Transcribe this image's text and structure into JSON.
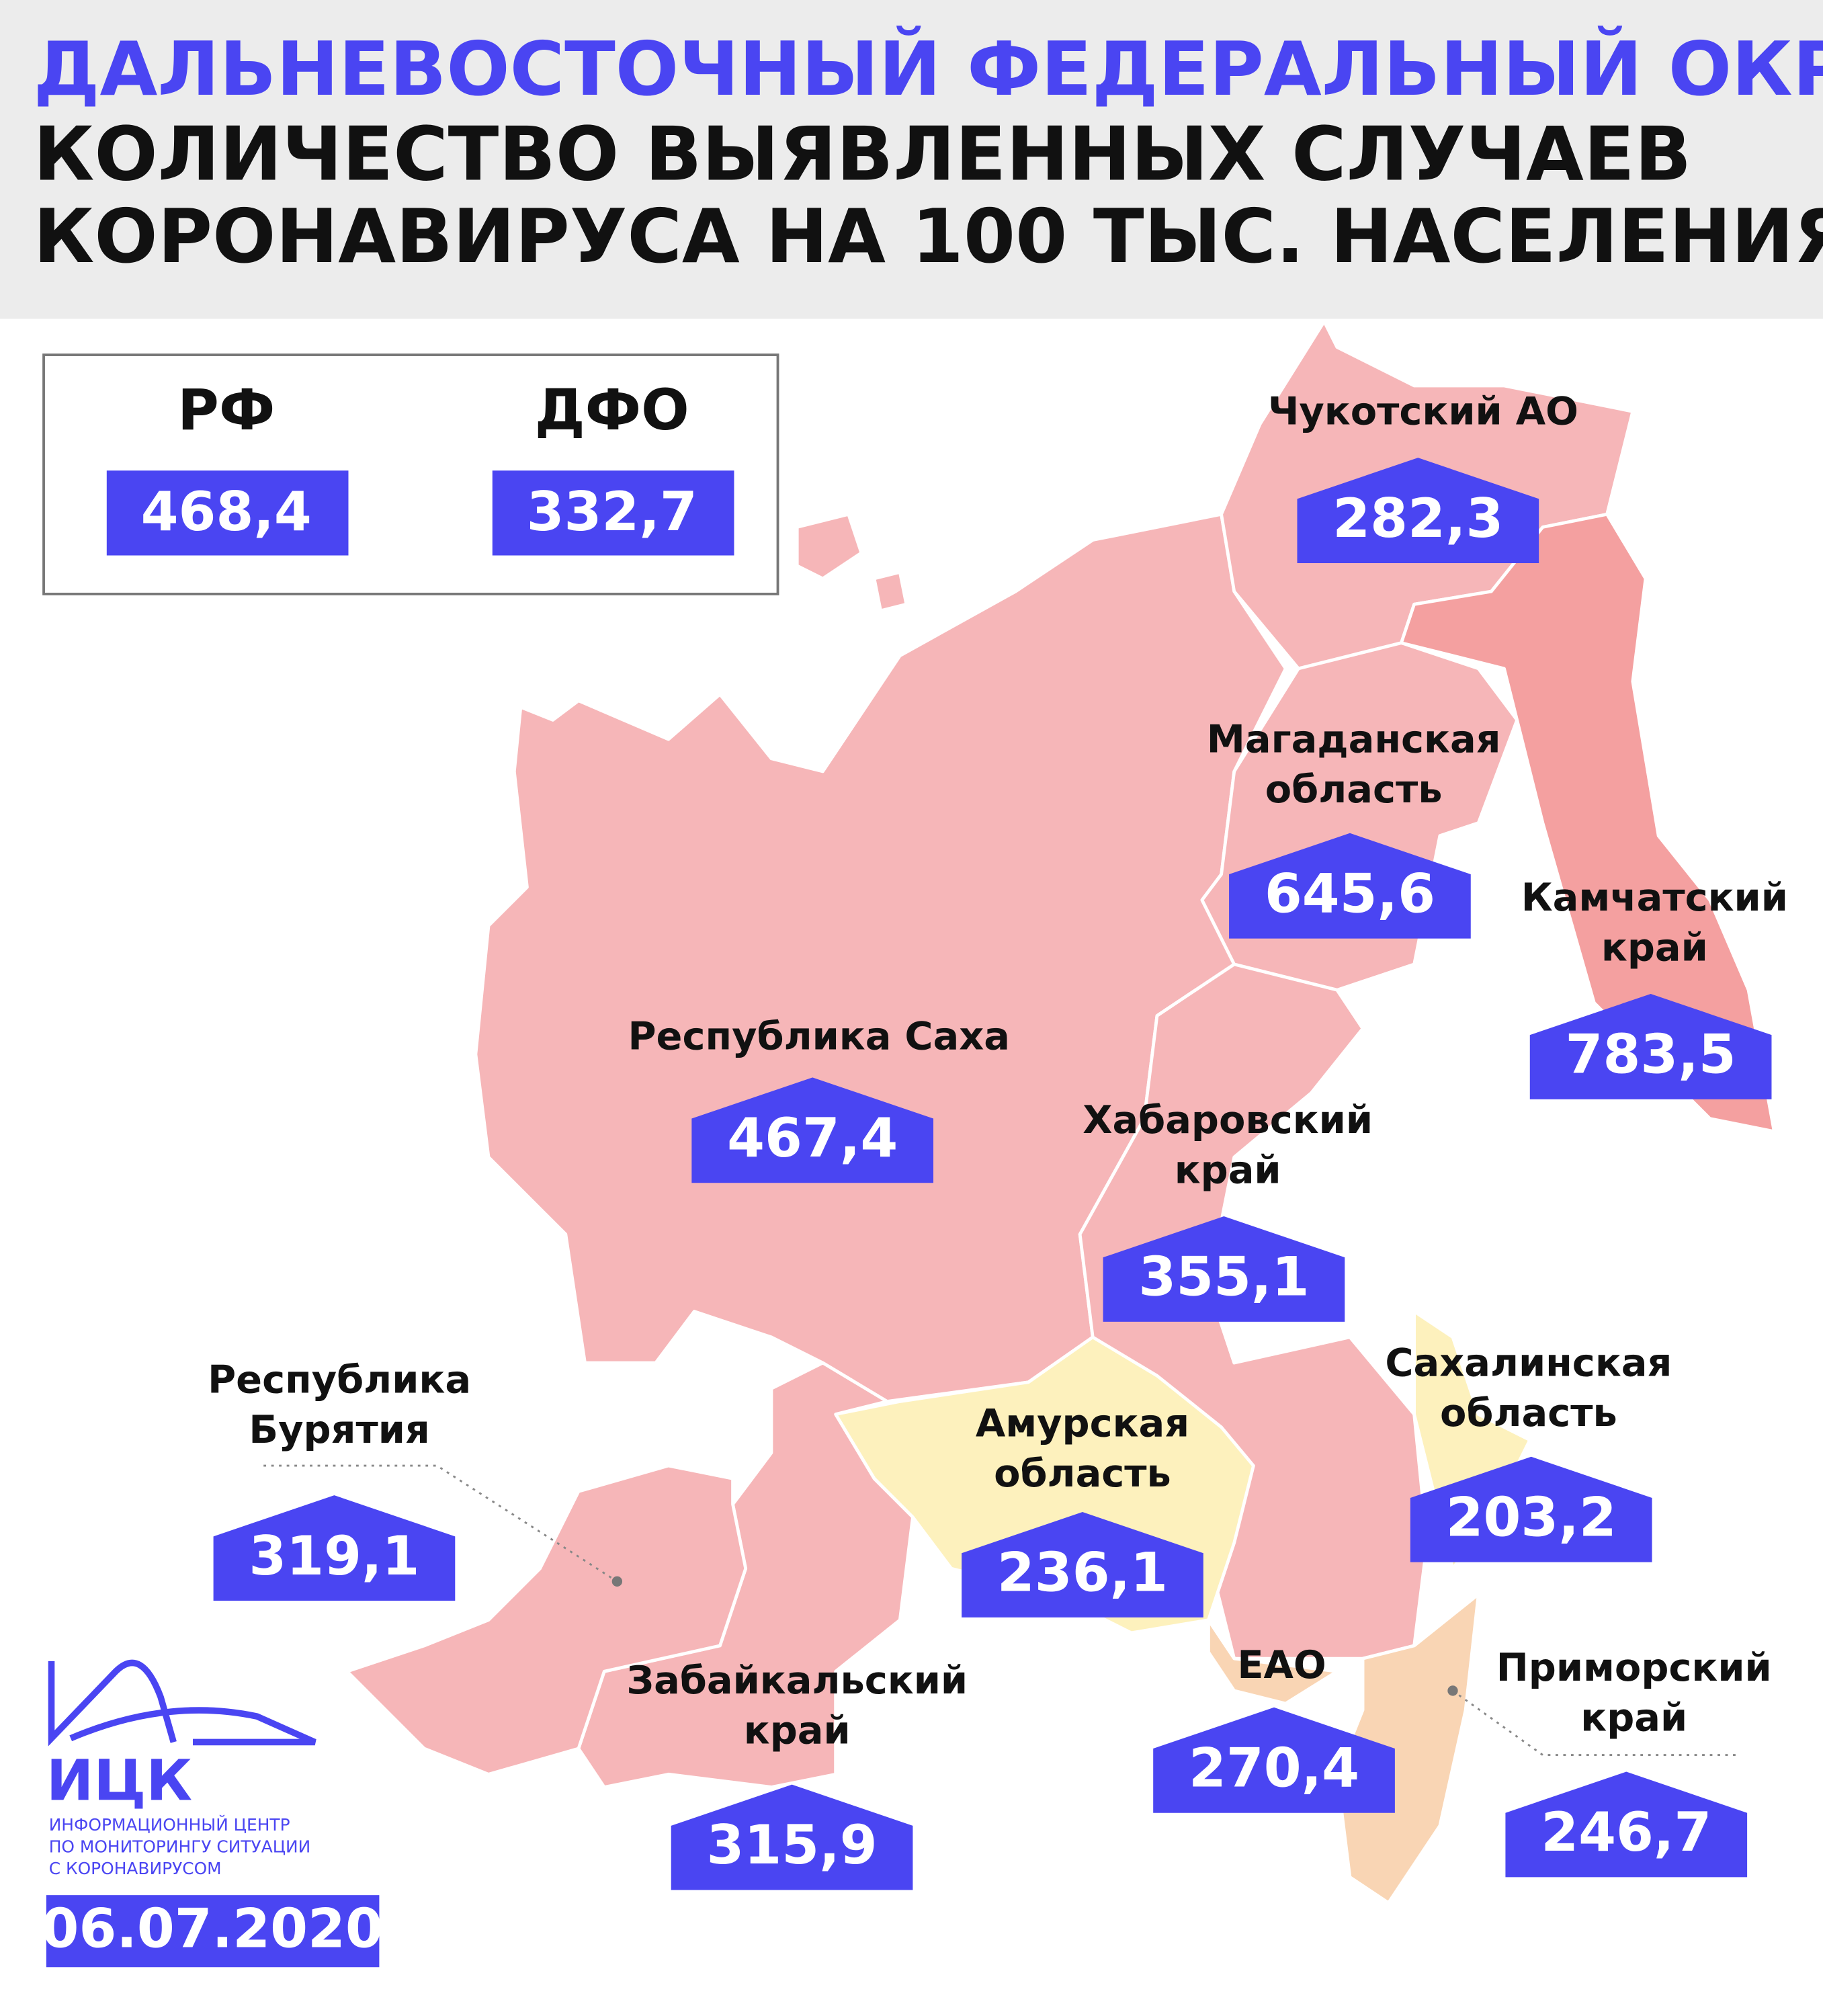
{
  "header": {
    "title": "ДАЛЬНЕВОСТОЧНЫЙ ФЕДЕРАЛЬНЫЙ ОКРУГ",
    "subtitle_lines": [
      "КОЛИЧЕСТВО ВЫЯВЛЕННЫХ СЛУЧАЕВ",
      "КОРОНАВИРУСА НА 100 ТЫС. НАСЕЛЕНИЯ"
    ]
  },
  "summary": [
    {
      "label": "РФ",
      "value": "468,4"
    },
    {
      "label": "ДФО",
      "value": "332,7"
    }
  ],
  "regions": [
    {
      "name_lines": [
        "Чукотский АО"
      ],
      "value": "282,3"
    },
    {
      "name_lines": [
        "Магаданская",
        "область"
      ],
      "value": "645,6"
    },
    {
      "name_lines": [
        "Камчатский",
        "край"
      ],
      "value": "783,5"
    },
    {
      "name_lines": [
        "Республика Саха"
      ],
      "value": "467,4"
    },
    {
      "name_lines": [
        "Хабаровский",
        "край"
      ],
      "value": "355,1"
    },
    {
      "name_lines": [
        "Сахалинская",
        "область"
      ],
      "value": "203,2"
    },
    {
      "name_lines": [
        "Амурская",
        "область"
      ],
      "value": "236,1"
    },
    {
      "name_lines": [
        "Республика",
        "Бурятия"
      ],
      "value": "319,1"
    },
    {
      "name_lines": [
        "Забайкальский",
        "край"
      ],
      "value": "315,9"
    },
    {
      "name_lines": [
        "ЕАО"
      ],
      "value": "270,4"
    },
    {
      "name_lines": [
        "Приморский",
        "край"
      ],
      "value": "246,7"
    }
  ],
  "logo": {
    "abbr": "ИЦК",
    "lines": [
      "ИНФОРМАЦИОННЫЙ ЦЕНТР",
      "ПО МОНИТОРИНГУ СИТУАЦИИ",
      "С КОРОНАВИРУСОМ"
    ]
  },
  "date": "06.07.2020"
}
